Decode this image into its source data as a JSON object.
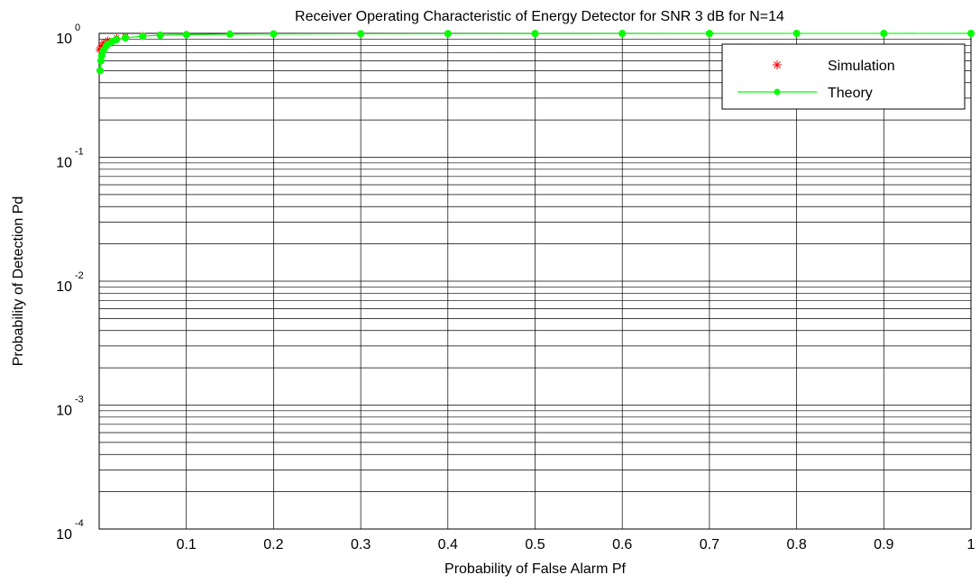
{
  "chart_data": {
    "type": "line",
    "title": "Receiver Operating Characteristic of Energy Detector for SNR 3 dB for N=14",
    "xlabel": "Probability of False Alarm Pf",
    "ylabel": "Probability of Detection Pd",
    "xlim": [
      0,
      1
    ],
    "ylim": [
      0.0001,
      1
    ],
    "yscale": "log",
    "grid": true,
    "x_ticks": [
      0.1,
      0.2,
      0.3,
      0.4,
      0.5,
      0.6,
      0.7,
      0.8,
      0.9,
      1
    ],
    "x_tick_labels": [
      "0.1",
      "0.2",
      "0.3",
      "0.4",
      "0.5",
      "0.6",
      "0.7",
      "0.8",
      "0.9",
      "1"
    ],
    "y_ticks": [
      {
        "value": 1,
        "base": "10",
        "exponent": "0"
      },
      {
        "value": 0.1,
        "base": "10",
        "exponent": "-1"
      },
      {
        "value": 0.01,
        "base": "10",
        "exponent": "-2"
      },
      {
        "value": 0.001,
        "base": "10",
        "exponent": "-3"
      },
      {
        "value": 0.0001,
        "base": "10",
        "exponent": "-4"
      }
    ],
    "legend_position": "top-right",
    "series": [
      {
        "name": "Simulation",
        "marker": "asterisk",
        "line": "none",
        "color": "#ff0000",
        "x": [
          0.0,
          0.002,
          0.005,
          0.01,
          0.02,
          0.03,
          0.05,
          0.07,
          0.1,
          0.15,
          0.2,
          0.3,
          0.4,
          0.5,
          0.6,
          0.7,
          0.8,
          0.9,
          1.0
        ],
        "y": [
          0.74,
          0.79,
          0.84,
          0.88,
          0.92,
          0.94,
          0.96,
          0.97,
          0.98,
          0.985,
          0.99,
          0.993,
          0.995,
          0.996,
          0.997,
          0.998,
          0.999,
          0.999,
          1.0
        ]
      },
      {
        "name": "Theory",
        "marker": "dot",
        "line": "solid",
        "color": "#00ff00",
        "x": [
          0.001,
          0.002,
          0.003,
          0.005,
          0.008,
          0.01,
          0.015,
          0.02,
          0.03,
          0.05,
          0.07,
          0.1,
          0.15,
          0.2,
          0.3,
          0.4,
          0.5,
          0.6,
          0.7,
          0.8,
          0.9,
          1.0
        ],
        "y": [
          0.5,
          0.6,
          0.66,
          0.73,
          0.79,
          0.82,
          0.86,
          0.89,
          0.92,
          0.95,
          0.965,
          0.975,
          0.985,
          0.99,
          0.993,
          0.995,
          0.996,
          0.997,
          0.998,
          0.999,
          0.999,
          1.0
        ]
      }
    ]
  }
}
